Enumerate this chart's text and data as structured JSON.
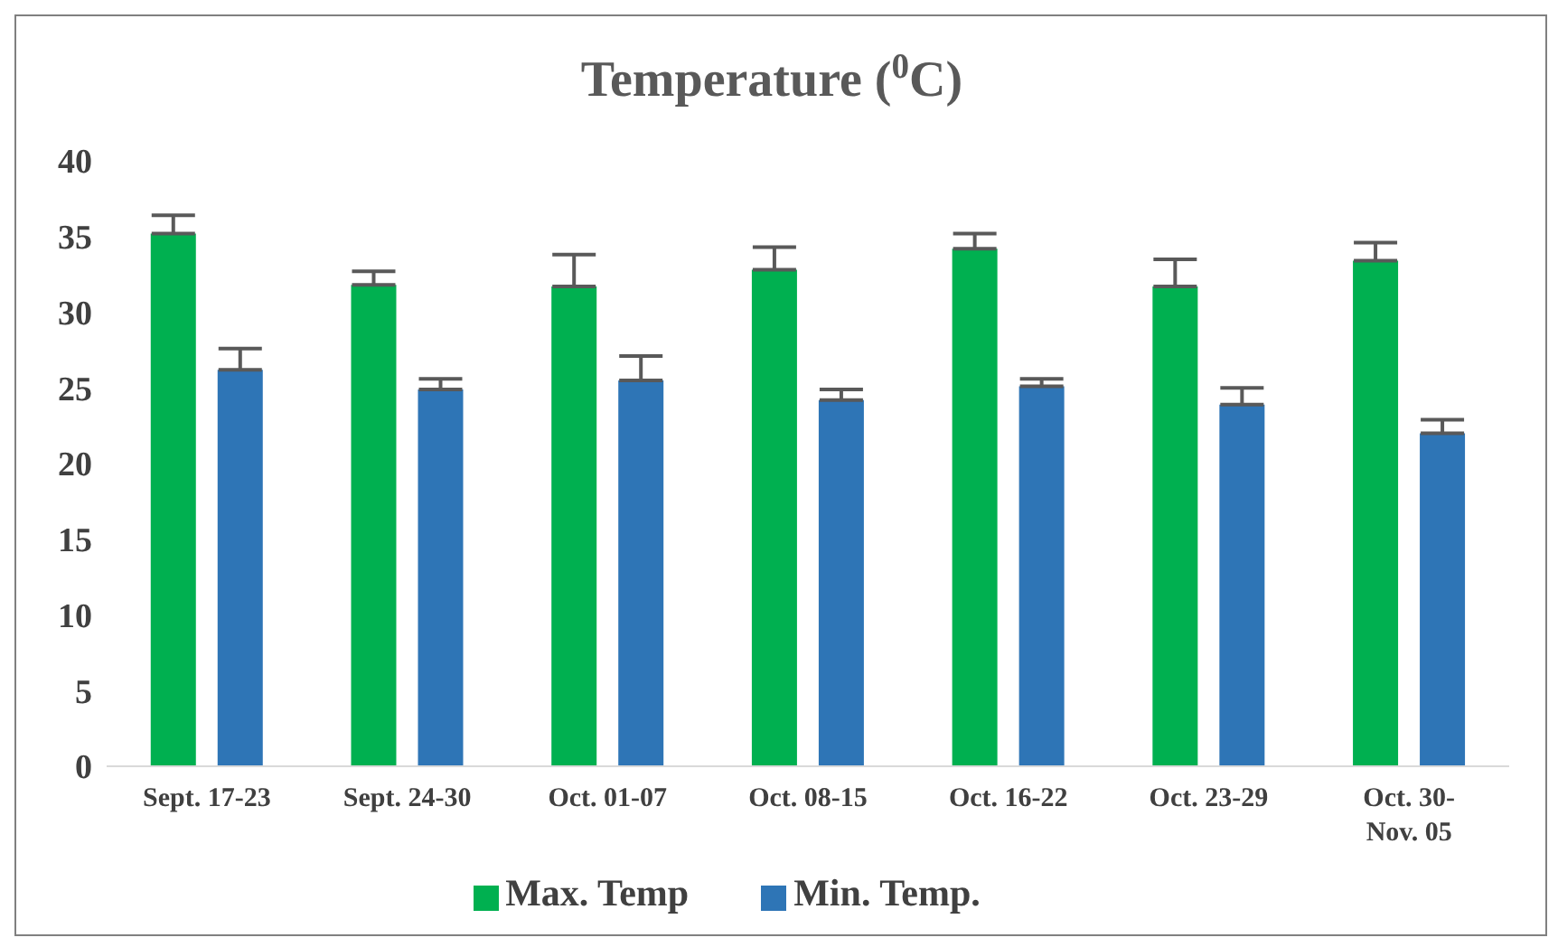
{
  "chart_data": {
    "type": "bar",
    "title": "Temperature ($^{0}$C)",
    "categories": [
      "Sept. 17-23",
      "Sept. 24-30",
      "Oct. 01-07",
      "Oct. 08-15",
      "Oct. 16-22",
      "Oct. 23-29",
      "Oct. 30-Nov. 05"
    ],
    "series": [
      {
        "name": "Max. Temp",
        "color": "#00b050",
        "values": [
          35.2,
          31.8,
          31.7,
          32.8,
          34.2,
          31.7,
          33.4
        ],
        "errors": [
          [
            35.2,
            36.4
          ],
          [
            31.8,
            32.7
          ],
          [
            31.7,
            33.8
          ],
          [
            32.8,
            34.3
          ],
          [
            34.2,
            35.2
          ],
          [
            31.7,
            33.5
          ],
          [
            33.4,
            34.6
          ]
        ]
      },
      {
        "name": "Min. Temp.",
        "color": "#2e75b6",
        "values": [
          26.2,
          24.9,
          25.5,
          24.2,
          25.1,
          23.9,
          22.0
        ],
        "errors": [
          [
            26.2,
            27.6
          ],
          [
            24.9,
            25.6
          ],
          [
            25.5,
            27.1
          ],
          [
            24.2,
            24.9
          ],
          [
            25.1,
            25.6
          ],
          [
            23.9,
            25.0
          ],
          [
            22.0,
            22.9
          ]
        ]
      }
    ],
    "ylim": [
      0,
      40
    ],
    "yticks": [
      0,
      5,
      10,
      15,
      20,
      25,
      30,
      35,
      40
    ],
    "legend": "bottom"
  }
}
